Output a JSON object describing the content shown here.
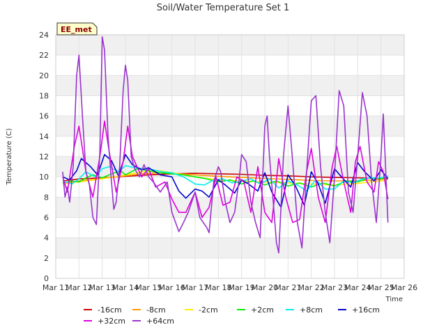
{
  "chart_data": {
    "type": "line",
    "title": "Soil/Water Temperature Set 1",
    "xlabel": "Time",
    "ylabel": "Temperature (C)",
    "badge": "EE_met",
    "xlim": [
      11,
      26
    ],
    "ylim": [
      0,
      24
    ],
    "x_ticks": [
      11,
      12,
      13,
      14,
      15,
      16,
      17,
      18,
      19,
      20,
      21,
      22,
      23,
      24,
      25,
      26
    ],
    "x_tick_labels": [
      "Mar 11",
      "Mar 12",
      "Mar 13",
      "Mar 14",
      "Mar 15",
      "Mar 16",
      "Mar 17",
      "Mar 18",
      "Mar 19",
      "Mar 20",
      "Mar 21",
      "Mar 22",
      "Mar 23",
      "Mar 24",
      "Mar 25",
      "Mar 26"
    ],
    "y_ticks": [
      0,
      2,
      4,
      6,
      8,
      10,
      12,
      14,
      16,
      18,
      20,
      22,
      24
    ],
    "y_tick_labels": [
      "0",
      "2",
      "4",
      "6",
      "8",
      "10",
      "12",
      "14",
      "16",
      "18",
      "20",
      "22",
      "24"
    ],
    "band_color": "#f0f0f0",
    "series": [
      {
        "name": "-16cm",
        "color": "#cc0000",
        "x": [
          11.3,
          12,
          13,
          14,
          15,
          16,
          17,
          18,
          19,
          20,
          21,
          22,
          23,
          24,
          25,
          25.3
        ],
        "y": [
          9.6,
          9.8,
          9.9,
          10.05,
          10.2,
          10.3,
          10.35,
          10.3,
          10.25,
          10.15,
          10.1,
          10.0,
          9.95,
          9.9,
          9.85,
          9.85
        ]
      },
      {
        "name": "-8cm",
        "color": "#ff9900",
        "x": [
          11.3,
          12,
          13,
          14,
          14.7,
          15.5,
          16,
          17,
          18,
          19,
          20,
          21,
          22,
          23,
          24,
          25,
          25.3
        ],
        "y": [
          9.4,
          9.6,
          9.85,
          10.1,
          10.3,
          10.4,
          10.35,
          10.2,
          10.05,
          9.95,
          9.85,
          9.75,
          9.65,
          9.6,
          9.6,
          9.75,
          9.8
        ]
      },
      {
        "name": "-2cm",
        "color": "#ffee00",
        "x": [
          11.3,
          12,
          13,
          14,
          14.7,
          15.5,
          16,
          17,
          18,
          19,
          20,
          21,
          22,
          23,
          24,
          25,
          25.3
        ],
        "y": [
          9.3,
          9.5,
          9.8,
          10.2,
          10.5,
          10.6,
          10.4,
          10.0,
          9.7,
          9.6,
          9.5,
          9.4,
          9.3,
          9.2,
          9.35,
          9.6,
          9.7
        ]
      },
      {
        "name": "+2cm",
        "color": "#00ee00",
        "x": [
          11.3,
          11.7,
          12,
          12.3,
          12.6,
          13,
          13.4,
          13.8,
          14,
          14.5,
          15,
          15.5,
          16,
          16.5,
          17,
          17.5,
          18,
          18.5,
          19,
          19.5,
          20,
          20.5,
          21,
          21.5,
          22,
          22.5,
          23,
          23.5,
          24,
          24.5,
          25,
          25.3
        ],
        "y": [
          9.4,
          9.6,
          9.5,
          9.9,
          10.2,
          9.9,
          10.3,
          10.6,
          10.2,
          10.8,
          10.6,
          10.4,
          10.3,
          10.2,
          10.0,
          9.8,
          9.5,
          9.7,
          9.3,
          9.6,
          9.2,
          9.6,
          9.1,
          9.4,
          9.0,
          9.4,
          9.1,
          9.6,
          9.5,
          9.9,
          9.8,
          10.0
        ]
      },
      {
        "name": "+8cm",
        "color": "#00eeee",
        "x": [
          11.3,
          11.7,
          12,
          12.3,
          12.7,
          13,
          13.3,
          13.7,
          14,
          14.4,
          14.8,
          15.2,
          15.6,
          16,
          16.5,
          17,
          17.4,
          17.8,
          18.2,
          18.6,
          19,
          19.4,
          19.8,
          20.2,
          20.6,
          21,
          21.4,
          21.8,
          22.2,
          22.6,
          23,
          23.4,
          23.8,
          24.2,
          24.6,
          25,
          25.3
        ],
        "y": [
          9.6,
          9.3,
          9.8,
          10.5,
          10.0,
          10.8,
          11.0,
          10.5,
          11.1,
          10.9,
          10.8,
          10.7,
          10.5,
          10.4,
          10.0,
          9.3,
          9.2,
          9.7,
          9.8,
          9.4,
          9.6,
          9.8,
          9.3,
          9.8,
          8.9,
          9.6,
          9.2,
          8.6,
          9.7,
          8.8,
          8.8,
          9.6,
          9.4,
          9.8,
          9.9,
          9.9,
          10.1
        ]
      },
      {
        "name": "+16cm",
        "color": "#0000cc",
        "x": [
          11.3,
          11.6,
          11.9,
          12.1,
          12.5,
          12.8,
          13.1,
          13.4,
          13.7,
          14.0,
          14.3,
          14.7,
          15.0,
          15.5,
          16.0,
          16.3,
          16.6,
          17.0,
          17.3,
          17.6,
          18.0,
          18.3,
          18.7,
          19.0,
          19.3,
          19.7,
          20.0,
          20.3,
          20.7,
          21.0,
          21.3,
          21.7,
          22.0,
          22.3,
          22.6,
          23.0,
          23.3,
          23.7,
          24.0,
          24.3,
          24.7,
          25.0,
          25.3
        ],
        "y": [
          10.0,
          9.7,
          10.6,
          11.8,
          11.0,
          10.2,
          12.2,
          11.6,
          10.1,
          12.2,
          11.2,
          10.7,
          10.9,
          10.2,
          10.0,
          8.6,
          7.9,
          8.8,
          8.6,
          8.0,
          9.7,
          9.2,
          8.4,
          9.7,
          9.3,
          8.6,
          10.4,
          8.5,
          7.0,
          10.2,
          9.2,
          7.2,
          10.5,
          9.3,
          7.4,
          10.8,
          10.0,
          9.0,
          11.4,
          10.5,
          9.6,
          10.7,
          9.8
        ]
      },
      {
        "name": "+32cm",
        "color": "#dd00dd",
        "x": [
          11.3,
          11.5,
          11.8,
          12.0,
          12.3,
          12.6,
          12.9,
          13.1,
          13.3,
          13.6,
          13.9,
          14.1,
          14.3,
          14.7,
          15.0,
          15.3,
          15.7,
          16.0,
          16.3,
          16.6,
          17.0,
          17.3,
          17.6,
          17.9,
          18.2,
          18.5,
          18.8,
          19.1,
          19.4,
          19.7,
          20.0,
          20.3,
          20.6,
          20.9,
          21.2,
          21.5,
          21.8,
          22.0,
          22.3,
          22.6,
          22.9,
          23.1,
          23.4,
          23.7,
          23.9,
          24.1,
          24.4,
          24.7,
          24.9,
          25.1,
          25.3
        ],
        "y": [
          10.0,
          8.5,
          13.0,
          15.0,
          10.5,
          8.0,
          12.0,
          15.5,
          12.5,
          8.5,
          11.5,
          15.0,
          12.0,
          10.0,
          10.8,
          9.0,
          9.5,
          7.8,
          6.5,
          6.5,
          8.5,
          6.0,
          7.0,
          10.0,
          7.2,
          7.5,
          10.0,
          9.5,
          6.5,
          11.0,
          6.5,
          5.5,
          11.8,
          8.0,
          5.5,
          5.8,
          10.5,
          12.8,
          8.0,
          5.5,
          11.0,
          13.0,
          9.5,
          6.5,
          11.5,
          13.0,
          9.5,
          8.5,
          11.5,
          10.5,
          7.8
        ]
      },
      {
        "name": "+64cm",
        "color": "#9933cc",
        "x": [
          11.3,
          11.4,
          11.5,
          11.6,
          11.75,
          11.9,
          12.0,
          12.15,
          12.3,
          12.45,
          12.6,
          12.75,
          12.9,
          13.0,
          13.1,
          13.25,
          13.4,
          13.5,
          13.6,
          13.75,
          13.9,
          14.0,
          14.1,
          14.25,
          14.4,
          14.6,
          14.8,
          15.0,
          15.2,
          15.5,
          15.8,
          16.0,
          16.3,
          16.5,
          16.7,
          17.0,
          17.2,
          17.5,
          17.6,
          17.8,
          18.0,
          18.1,
          18.3,
          18.5,
          18.7,
          18.9,
          19.0,
          19.2,
          19.4,
          19.6,
          19.8,
          20.0,
          20.1,
          20.2,
          20.4,
          20.5,
          20.6,
          20.8,
          21.0,
          21.2,
          21.4,
          21.6,
          21.8,
          22.0,
          22.2,
          22.4,
          22.6,
          22.8,
          23.0,
          23.2,
          23.4,
          23.6,
          23.8,
          24.0,
          24.2,
          24.4,
          24.6,
          24.8,
          25.0,
          25.1,
          25.3
        ],
        "y": [
          10.5,
          8.0,
          9.0,
          7.5,
          11.0,
          20.0,
          22.0,
          16.0,
          10.5,
          9.2,
          6.0,
          5.3,
          12.5,
          23.8,
          22.5,
          14.0,
          9.5,
          6.8,
          7.5,
          11.0,
          18.5,
          21.0,
          19.5,
          12.0,
          10.8,
          10.0,
          11.2,
          10.0,
          9.5,
          8.5,
          9.5,
          6.5,
          4.6,
          5.5,
          6.5,
          8.5,
          6.0,
          5.0,
          4.5,
          9.5,
          11.0,
          10.5,
          7.5,
          5.5,
          6.5,
          9.8,
          12.2,
          11.5,
          7.5,
          5.5,
          4.0,
          15.0,
          16.0,
          12.0,
          6.5,
          3.5,
          2.5,
          12.0,
          17.0,
          11.5,
          5.5,
          3.0,
          10.5,
          17.5,
          18.0,
          11.0,
          6.5,
          3.5,
          10.0,
          18.5,
          17.0,
          8.5,
          6.5,
          12.0,
          18.3,
          16.0,
          9.5,
          5.5,
          12.0,
          16.2,
          5.5
        ]
      }
    ]
  }
}
